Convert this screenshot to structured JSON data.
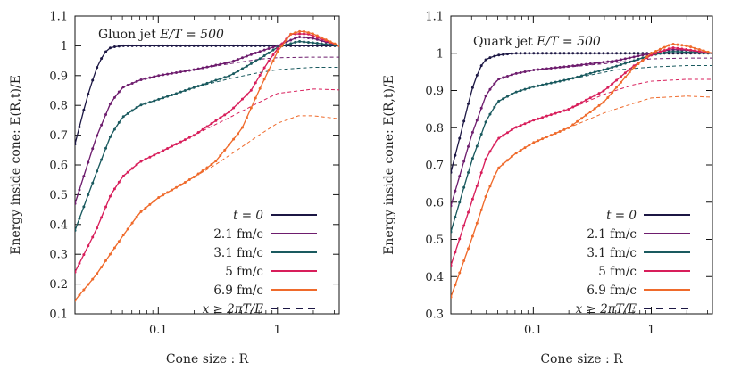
{
  "chart_data": [
    {
      "type": "line",
      "panel": "left",
      "annotation": "Gluon jet E/T = 500",
      "annotation_prefix": "Gluon jet",
      "annotation_math": "E/T = 500",
      "xlabel": "Cone size : R",
      "ylabel": "Energy inside cone: E(R,t)/E",
      "xscale": "log",
      "xlim": [
        0.02,
        3.3
      ],
      "ylim": [
        0.1,
        1.1
      ],
      "xticks": [
        {
          "value": 0.1,
          "label": "0.1"
        },
        {
          "value": 1,
          "label": "1"
        }
      ],
      "yticks": [
        {
          "value": 0.1,
          "label": "0.1"
        },
        {
          "value": 0.2,
          "label": "0.2"
        },
        {
          "value": 0.3,
          "label": "0.3"
        },
        {
          "value": 0.4,
          "label": "0.4"
        },
        {
          "value": 0.5,
          "label": "0.5"
        },
        {
          "value": 0.6,
          "label": "0.6"
        },
        {
          "value": 0.7,
          "label": "0.7"
        },
        {
          "value": 0.8,
          "label": "0.8"
        },
        {
          "value": 0.9,
          "label": "0.9"
        },
        {
          "value": 1.0,
          "label": "1"
        },
        {
          "value": 1.1,
          "label": "1.1"
        }
      ],
      "legend_position": "bottom-right",
      "series": [
        {
          "name": "t = 0",
          "color": "#1c1744",
          "points": [
            [
              0.02,
              0.67
            ],
            [
              0.025,
              0.82
            ],
            [
              0.03,
              0.92
            ],
            [
              0.035,
              0.975
            ],
            [
              0.04,
              0.995
            ],
            [
              0.05,
              1.0
            ],
            [
              0.1,
              1.0
            ],
            [
              0.5,
              1.0
            ],
            [
              1,
              1.0
            ],
            [
              3.3,
              1.0
            ]
          ]
        },
        {
          "name": "2.1 fm/c",
          "color": "#6e1d6e",
          "points": [
            [
              0.02,
              0.47
            ],
            [
              0.03,
              0.69
            ],
            [
              0.04,
              0.81
            ],
            [
              0.05,
              0.86
            ],
            [
              0.07,
              0.885
            ],
            [
              0.1,
              0.9
            ],
            [
              0.2,
              0.92
            ],
            [
              0.4,
              0.945
            ],
            [
              0.7,
              0.98
            ],
            [
              1,
              1.0
            ],
            [
              1.5,
              1.03
            ],
            [
              2,
              1.025
            ],
            [
              3.3,
              1.0
            ]
          ],
          "dashed": [
            [
              0.02,
              0.47
            ],
            [
              0.03,
              0.69
            ],
            [
              0.04,
              0.81
            ],
            [
              0.05,
              0.86
            ],
            [
              0.07,
              0.885
            ],
            [
              0.1,
              0.9
            ],
            [
              0.2,
              0.92
            ],
            [
              0.4,
              0.94
            ],
            [
              0.7,
              0.955
            ],
            [
              1,
              0.96
            ],
            [
              2,
              0.962
            ],
            [
              3.3,
              0.962
            ]
          ]
        },
        {
          "name": "3.1 fm/c",
          "color": "#1a5a5f",
          "points": [
            [
              0.02,
              0.38
            ],
            [
              0.03,
              0.57
            ],
            [
              0.04,
              0.7
            ],
            [
              0.05,
              0.76
            ],
            [
              0.07,
              0.8
            ],
            [
              0.1,
              0.82
            ],
            [
              0.2,
              0.86
            ],
            [
              0.4,
              0.9
            ],
            [
              0.7,
              0.955
            ],
            [
              1,
              0.995
            ],
            [
              1.5,
              1.015
            ],
            [
              2,
              1.01
            ],
            [
              3.3,
              1.0
            ]
          ],
          "dashed": [
            [
              0.02,
              0.38
            ],
            [
              0.03,
              0.57
            ],
            [
              0.04,
              0.7
            ],
            [
              0.05,
              0.76
            ],
            [
              0.07,
              0.8
            ],
            [
              0.1,
              0.82
            ],
            [
              0.2,
              0.86
            ],
            [
              0.4,
              0.89
            ],
            [
              0.7,
              0.91
            ],
            [
              1,
              0.92
            ],
            [
              2,
              0.928
            ],
            [
              3.3,
              0.928
            ]
          ]
        },
        {
          "name": "5 fm/c",
          "color": "#d81e5b",
          "points": [
            [
              0.02,
              0.24
            ],
            [
              0.03,
              0.38
            ],
            [
              0.04,
              0.5
            ],
            [
              0.05,
              0.56
            ],
            [
              0.07,
              0.61
            ],
            [
              0.1,
              0.64
            ],
            [
              0.2,
              0.7
            ],
            [
              0.4,
              0.78
            ],
            [
              0.6,
              0.85
            ],
            [
              0.8,
              0.935
            ],
            [
              1,
              0.99
            ],
            [
              1.3,
              1.04
            ],
            [
              1.8,
              1.04
            ],
            [
              3.3,
              1.0
            ]
          ],
          "dashed": [
            [
              0.02,
              0.24
            ],
            [
              0.03,
              0.38
            ],
            [
              0.04,
              0.5
            ],
            [
              0.05,
              0.56
            ],
            [
              0.07,
              0.61
            ],
            [
              0.1,
              0.64
            ],
            [
              0.2,
              0.7
            ],
            [
              0.4,
              0.76
            ],
            [
              0.7,
              0.81
            ],
            [
              1,
              0.84
            ],
            [
              2,
              0.855
            ],
            [
              3.3,
              0.852
            ]
          ]
        },
        {
          "name": "6.9 fm/c",
          "color": "#ef6a2b",
          "points": [
            [
              0.02,
              0.145
            ],
            [
              0.03,
              0.23
            ],
            [
              0.05,
              0.36
            ],
            [
              0.07,
              0.44
            ],
            [
              0.1,
              0.49
            ],
            [
              0.15,
              0.53
            ],
            [
              0.2,
              0.56
            ],
            [
              0.3,
              0.61
            ],
            [
              0.5,
              0.72
            ],
            [
              0.7,
              0.85
            ],
            [
              1,
              0.98
            ],
            [
              1.3,
              1.04
            ],
            [
              1.6,
              1.05
            ],
            [
              2,
              1.04
            ],
            [
              3.3,
              1.0
            ]
          ],
          "dashed": [
            [
              0.02,
              0.145
            ],
            [
              0.03,
              0.23
            ],
            [
              0.05,
              0.36
            ],
            [
              0.07,
              0.44
            ],
            [
              0.1,
              0.49
            ],
            [
              0.15,
              0.53
            ],
            [
              0.2,
              0.56
            ],
            [
              0.3,
              0.6
            ],
            [
              0.5,
              0.66
            ],
            [
              0.7,
              0.7
            ],
            [
              1,
              0.74
            ],
            [
              1.5,
              0.765
            ],
            [
              2,
              0.765
            ],
            [
              3.3,
              0.755
            ]
          ]
        }
      ]
    },
    {
      "type": "line",
      "panel": "right",
      "annotation": "Quark jet E/T = 500",
      "annotation_prefix": "Quark jet",
      "annotation_math": "E/T = 500",
      "xlabel": "Cone size : R",
      "ylabel": "Energy inside cone: E(R,t)/E",
      "xscale": "log",
      "xlim": [
        0.02,
        3.3
      ],
      "ylim": [
        0.3,
        1.1
      ],
      "xticks": [
        {
          "value": 0.1,
          "label": "0.1"
        },
        {
          "value": 1,
          "label": "1"
        }
      ],
      "yticks": [
        {
          "value": 0.3,
          "label": "0.3"
        },
        {
          "value": 0.4,
          "label": "0.4"
        },
        {
          "value": 0.5,
          "label": "0.5"
        },
        {
          "value": 0.6,
          "label": "0.6"
        },
        {
          "value": 0.7,
          "label": "0.7"
        },
        {
          "value": 0.8,
          "label": "0.8"
        },
        {
          "value": 0.9,
          "label": "0.9"
        },
        {
          "value": 1.0,
          "label": "1"
        },
        {
          "value": 1.1,
          "label": "1.1"
        }
      ],
      "legend_position": "bottom-right",
      "series": [
        {
          "name": "t = 0",
          "color": "#1c1744",
          "points": [
            [
              0.02,
              0.68
            ],
            [
              0.025,
              0.8
            ],
            [
              0.03,
              0.9
            ],
            [
              0.035,
              0.96
            ],
            [
              0.04,
              0.985
            ],
            [
              0.05,
              0.995
            ],
            [
              0.07,
              1.0
            ],
            [
              0.1,
              1.0
            ],
            [
              1,
              1.0
            ],
            [
              3.3,
              1.0
            ]
          ]
        },
        {
          "name": "2.1 fm/c",
          "color": "#6e1d6e",
          "points": [
            [
              0.02,
              0.59
            ],
            [
              0.03,
              0.78
            ],
            [
              0.04,
              0.89
            ],
            [
              0.05,
              0.93
            ],
            [
              0.07,
              0.945
            ],
            [
              0.1,
              0.955
            ],
            [
              0.2,
              0.965
            ],
            [
              0.5,
              0.98
            ],
            [
              1,
              1.0
            ],
            [
              1.5,
              1.01
            ],
            [
              2,
              1.008
            ],
            [
              3.3,
              1.0
            ]
          ],
          "dashed": [
            [
              0.02,
              0.59
            ],
            [
              0.03,
              0.78
            ],
            [
              0.04,
              0.89
            ],
            [
              0.05,
              0.93
            ],
            [
              0.07,
              0.945
            ],
            [
              0.1,
              0.955
            ],
            [
              0.2,
              0.963
            ],
            [
              0.5,
              0.975
            ],
            [
              1,
              0.985
            ],
            [
              2,
              0.987
            ],
            [
              3.3,
              0.987
            ]
          ]
        },
        {
          "name": "3.1 fm/c",
          "color": "#1a5a5f",
          "points": [
            [
              0.02,
              0.52
            ],
            [
              0.03,
              0.71
            ],
            [
              0.04,
              0.82
            ],
            [
              0.05,
              0.87
            ],
            [
              0.07,
              0.895
            ],
            [
              0.1,
              0.91
            ],
            [
              0.2,
              0.93
            ],
            [
              0.5,
              0.965
            ],
            [
              1,
              0.995
            ],
            [
              1.5,
              1.005
            ],
            [
              2,
              1.003
            ],
            [
              3.3,
              1.0
            ]
          ],
          "dashed": [
            [
              0.02,
              0.52
            ],
            [
              0.03,
              0.71
            ],
            [
              0.04,
              0.82
            ],
            [
              0.05,
              0.87
            ],
            [
              0.07,
              0.895
            ],
            [
              0.1,
              0.91
            ],
            [
              0.2,
              0.93
            ],
            [
              0.5,
              0.955
            ],
            [
              1,
              0.963
            ],
            [
              2,
              0.967
            ],
            [
              3.3,
              0.967
            ]
          ]
        },
        {
          "name": "5 fm/c",
          "color": "#d81e5b",
          "points": [
            [
              0.02,
              0.43
            ],
            [
              0.03,
              0.6
            ],
            [
              0.04,
              0.72
            ],
            [
              0.05,
              0.77
            ],
            [
              0.07,
              0.8
            ],
            [
              0.1,
              0.82
            ],
            [
              0.2,
              0.85
            ],
            [
              0.4,
              0.9
            ],
            [
              0.7,
              0.965
            ],
            [
              1,
              0.995
            ],
            [
              1.5,
              1.015
            ],
            [
              2,
              1.01
            ],
            [
              3.3,
              1.0
            ]
          ],
          "dashed": [
            [
              0.02,
              0.43
            ],
            [
              0.03,
              0.6
            ],
            [
              0.04,
              0.72
            ],
            [
              0.05,
              0.77
            ],
            [
              0.07,
              0.8
            ],
            [
              0.1,
              0.82
            ],
            [
              0.2,
              0.85
            ],
            [
              0.4,
              0.89
            ],
            [
              0.7,
              0.915
            ],
            [
              1,
              0.925
            ],
            [
              2,
              0.93
            ],
            [
              3.3,
              0.93
            ]
          ]
        },
        {
          "name": "6.9 fm/c",
          "color": "#ef6a2b",
          "points": [
            [
              0.02,
              0.345
            ],
            [
              0.03,
              0.5
            ],
            [
              0.04,
              0.62
            ],
            [
              0.05,
              0.69
            ],
            [
              0.07,
              0.73
            ],
            [
              0.1,
              0.76
            ],
            [
              0.2,
              0.8
            ],
            [
              0.4,
              0.87
            ],
            [
              0.7,
              0.96
            ],
            [
              1,
              1.0
            ],
            [
              1.5,
              1.025
            ],
            [
              2,
              1.02
            ],
            [
              3.3,
              1.0
            ]
          ],
          "dashed": [
            [
              0.02,
              0.345
            ],
            [
              0.03,
              0.5
            ],
            [
              0.04,
              0.62
            ],
            [
              0.05,
              0.69
            ],
            [
              0.07,
              0.73
            ],
            [
              0.1,
              0.76
            ],
            [
              0.2,
              0.8
            ],
            [
              0.4,
              0.84
            ],
            [
              0.7,
              0.865
            ],
            [
              1,
              0.88
            ],
            [
              2,
              0.885
            ],
            [
              3.3,
              0.882
            ]
          ]
        }
      ]
    }
  ],
  "legend": {
    "entries": [
      {
        "label": "t = 0",
        "italic_symbol": true,
        "color": "#1c1744",
        "style": "solid"
      },
      {
        "label": "2.1 fm/c",
        "color": "#6e1d6e",
        "style": "solid"
      },
      {
        "label": "3.1 fm/c",
        "color": "#1a5a5f",
        "style": "solid"
      },
      {
        "label": "5 fm/c",
        "color": "#d81e5b",
        "style": "solid"
      },
      {
        "label": "6.9 fm/c",
        "color": "#ef6a2b",
        "style": "solid"
      },
      {
        "label": "x ≥ 2πT/E",
        "italic_symbol": true,
        "color": "#1c1744",
        "style": "dashed"
      }
    ]
  }
}
